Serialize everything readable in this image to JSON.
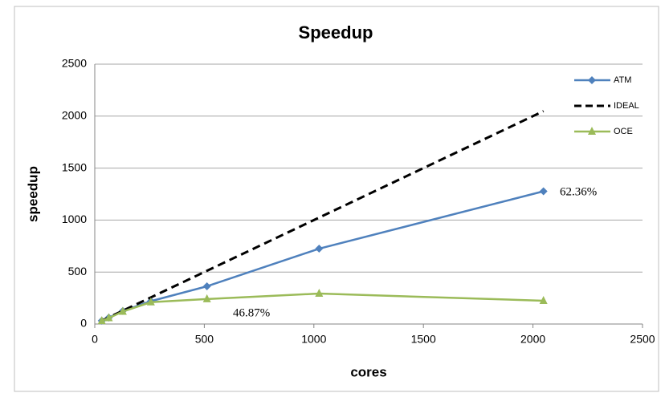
{
  "chart_data": {
    "type": "line",
    "title": "Speedup",
    "x_label": "cores",
    "y_label": "speedup",
    "x": [
      32,
      64,
      128,
      256,
      512,
      1024,
      2048
    ],
    "series": [
      {
        "name": "ATM",
        "color": "#4f81bd",
        "marker": "diamond",
        "dashed": false,
        "values": [
          32,
          62,
          125,
          220,
          363,
          725,
          1277
        ]
      },
      {
        "name": "IDEAL",
        "color": "#000000",
        "marker": "none",
        "dashed": true,
        "values": [
          32,
          64,
          128,
          256,
          512,
          1024,
          2048
        ]
      },
      {
        "name": "OCE",
        "color": "#9bbb59",
        "marker": "triangle",
        "dashed": false,
        "values": [
          30,
          58,
          120,
          210,
          240,
          293,
          224
        ]
      }
    ],
    "annotations": [
      "62.36%",
      "46.87%"
    ],
    "xlim": [
      0,
      2500
    ],
    "xticks": [
      0,
      500,
      1000,
      1500,
      2000,
      2500
    ],
    "ylim": [
      0,
      2500
    ],
    "yticks": [
      0,
      500,
      1000,
      1500,
      2000,
      2500
    ],
    "grid": true,
    "legend": "right"
  }
}
